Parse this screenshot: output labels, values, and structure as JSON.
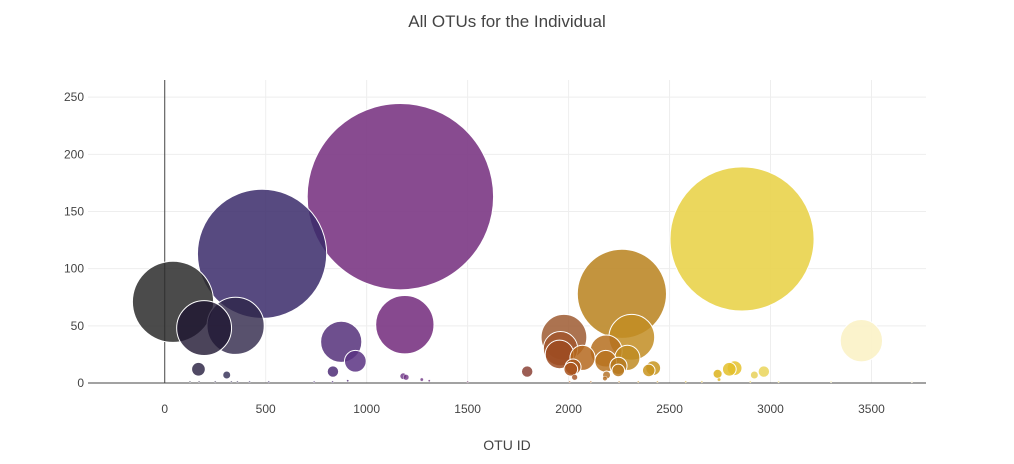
{
  "chart_data": {
    "type": "scatter",
    "title": "All OTUs for the Individual",
    "xlabel": "OTU ID",
    "ylabel": "",
    "xlim": [
      -380,
      3770
    ],
    "ylim": [
      0,
      265
    ],
    "x_ticks": [
      0,
      500,
      1000,
      1500,
      2000,
      2500,
      3000,
      3500
    ],
    "y_ticks": [
      0,
      50,
      100,
      150,
      200,
      250
    ],
    "grid": true,
    "marker_size_encodes": "sample value",
    "series": [
      {
        "points": [
          {
            "x": 41,
            "y": 71,
            "color": "#2b2b2b",
            "opacity": 0.85
          },
          {
            "x": 195,
            "y": 48,
            "color": "#1e1531",
            "opacity": 0.8
          },
          {
            "x": 351,
            "y": 50,
            "color": "#2e2548",
            "opacity": 0.8
          },
          {
            "x": 482,
            "y": 113,
            "color": "#3a2a6a",
            "opacity": 0.85
          },
          {
            "x": 167,
            "y": 12,
            "color": "#241c3d",
            "opacity": 0.8
          },
          {
            "x": 307,
            "y": 7,
            "color": "#2f2a52",
            "opacity": 0.8
          },
          {
            "x": 874,
            "y": 36,
            "color": "#55307a",
            "opacity": 0.85
          },
          {
            "x": 944,
            "y": 19,
            "color": "#5b3282",
            "opacity": 0.85
          },
          {
            "x": 833,
            "y": 10,
            "color": "#4e2d77",
            "opacity": 0.85
          },
          {
            "x": 1167,
            "y": 163,
            "color": "#7b3784",
            "opacity": 0.9
          },
          {
            "x": 1189,
            "y": 51,
            "color": "#7a3583",
            "opacity": 0.9
          },
          {
            "x": 1795,
            "y": 10,
            "color": "#8b4236",
            "opacity": 0.85
          },
          {
            "x": 1977,
            "y": 40,
            "color": "#9e5a31",
            "opacity": 0.85
          },
          {
            "x": 1960,
            "y": 30,
            "color": "#a1562d",
            "opacity": 0.85
          },
          {
            "x": 1955,
            "y": 25,
            "color": "#9e4b21",
            "opacity": 0.85
          },
          {
            "x": 2011,
            "y": 12,
            "color": "#a8511b",
            "opacity": 0.85
          },
          {
            "x": 2022,
            "y": 14,
            "color": "#a8561d",
            "opacity": 0.85
          },
          {
            "x": 2069,
            "y": 22,
            "color": "#b5681f",
            "opacity": 0.85
          },
          {
            "x": 2186,
            "y": 28,
            "color": "#b56f1e",
            "opacity": 0.85
          },
          {
            "x": 2184,
            "y": 19,
            "color": "#b97320",
            "opacity": 0.85
          },
          {
            "x": 2264,
            "y": 78,
            "color": "#bc8829",
            "opacity": 0.9
          },
          {
            "x": 2313,
            "y": 40,
            "color": "#c28d23",
            "opacity": 0.85
          },
          {
            "x": 2291,
            "y": 22,
            "color": "#c08b22",
            "opacity": 0.85
          },
          {
            "x": 2247,
            "y": 15,
            "color": "#b67a1f",
            "opacity": 0.85
          },
          {
            "x": 2246,
            "y": 11,
            "color": "#b8791f",
            "opacity": 0.85
          },
          {
            "x": 2419,
            "y": 13,
            "color": "#c7951f",
            "opacity": 0.85
          },
          {
            "x": 2397,
            "y": 11,
            "color": "#c9941e",
            "opacity": 0.85
          },
          {
            "x": 2738,
            "y": 8,
            "color": "#dcb31c",
            "opacity": 0.85
          },
          {
            "x": 2796,
            "y": 12,
            "color": "#e3c02a",
            "opacity": 0.85
          },
          {
            "x": 2822,
            "y": 13,
            "color": "#e5c22e",
            "opacity": 0.85
          },
          {
            "x": 2859,
            "y": 126,
            "color": "#e9d34b",
            "opacity": 0.9
          },
          {
            "x": 2967,
            "y": 10,
            "color": "#ead55a",
            "opacity": 0.85
          },
          {
            "x": 2920,
            "y": 7,
            "color": "#e8d15a",
            "opacity": 0.85
          },
          {
            "x": 3450,
            "y": 37,
            "color": "#fbf2c6",
            "opacity": 0.9
          },
          {
            "x": 2180,
            "y": 4,
            "color": "#b36a1e",
            "opacity": 0.8
          },
          {
            "x": 2030,
            "y": 5,
            "color": "#a24e1f",
            "opacity": 0.8
          },
          {
            "x": 2188,
            "y": 7,
            "color": "#b06b1e",
            "opacity": 0.8
          },
          {
            "x": 1181,
            "y": 6,
            "color": "#6b3384",
            "opacity": 0.8
          },
          {
            "x": 1195,
            "y": 5,
            "color": "#6f3384",
            "opacity": 0.8
          },
          {
            "x": 1273,
            "y": 3,
            "color": "#6f3584",
            "opacity": 0.8
          },
          {
            "x": 1310,
            "y": 2,
            "color": "#713884",
            "opacity": 0.8
          },
          {
            "x": 906,
            "y": 2,
            "color": "#55307a",
            "opacity": 0.8
          },
          {
            "x": 831,
            "y": 1,
            "color": "#50307a",
            "opacity": 0.8
          },
          {
            "x": 2745,
            "y": 3,
            "color": "#deb51f",
            "opacity": 0.8
          },
          {
            "x": 2005,
            "y": 1,
            "color": "#a8561d",
            "opacity": 0.6
          },
          {
            "x": 2110,
            "y": 1,
            "color": "#b56a1e",
            "opacity": 0.6
          },
          {
            "x": 2250,
            "y": 1,
            "color": "#bd7b21",
            "opacity": 0.6
          },
          {
            "x": 2345,
            "y": 1,
            "color": "#c48d21",
            "opacity": 0.6
          },
          {
            "x": 2440,
            "y": 1,
            "color": "#c9951f",
            "opacity": 0.6
          },
          {
            "x": 2580,
            "y": 1,
            "color": "#d4a61e",
            "opacity": 0.6
          },
          {
            "x": 2660,
            "y": 1,
            "color": "#d9ad1e",
            "opacity": 0.6
          },
          {
            "x": 2900,
            "y": 1,
            "color": "#e5c838",
            "opacity": 0.6
          },
          {
            "x": 3040,
            "y": 1,
            "color": "#ecd86a",
            "opacity": 0.6
          },
          {
            "x": 3300,
            "y": 1,
            "color": "#f4e79d",
            "opacity": 0.6
          },
          {
            "x": 3700,
            "y": 1,
            "color": "#fbf2c6",
            "opacity": 0.6
          },
          {
            "x": 125,
            "y": 1,
            "color": "#2b2b3d",
            "opacity": 0.6
          },
          {
            "x": 170,
            "y": 1,
            "color": "#2a2340",
            "opacity": 0.6
          },
          {
            "x": 250,
            "y": 1,
            "color": "#2c2446",
            "opacity": 0.6
          },
          {
            "x": 330,
            "y": 1,
            "color": "#30264c",
            "opacity": 0.6
          },
          {
            "x": 360,
            "y": 1,
            "color": "#322852",
            "opacity": 0.6
          },
          {
            "x": 420,
            "y": 1,
            "color": "#362a5c",
            "opacity": 0.6
          },
          {
            "x": 515,
            "y": 1,
            "color": "#3b2c66",
            "opacity": 0.6
          },
          {
            "x": 740,
            "y": 1,
            "color": "#4a2e74",
            "opacity": 0.6
          },
          {
            "x": 1500,
            "y": 1,
            "color": "#7a3a6e",
            "opacity": 0.6
          }
        ]
      }
    ]
  }
}
